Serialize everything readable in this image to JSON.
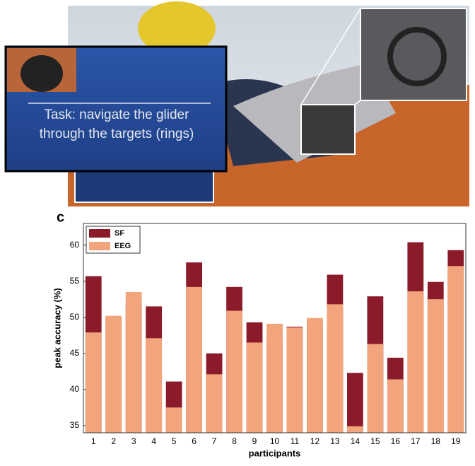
{
  "photo": {
    "caption_lines": [
      "Task: navigate the glider",
      "through the targets (rings)"
    ]
  },
  "panel_label": "c",
  "chart_data": {
    "type": "bar",
    "overlap": true,
    "x_label": "participants",
    "y_label": "peak accuracy (%)",
    "categories": [
      "1",
      "2",
      "3",
      "4",
      "5",
      "6",
      "7",
      "8",
      "9",
      "10",
      "11",
      "12",
      "13",
      "14",
      "15",
      "16",
      "17",
      "18",
      "19"
    ],
    "series": [
      {
        "name": "SF",
        "color": "#8b1a2b",
        "values": [
          55.7,
          49.9,
          51.9,
          51.5,
          41.1,
          57.6,
          45.0,
          54.2,
          49.3,
          47.1,
          48.7,
          48.8,
          55.9,
          42.3,
          52.9,
          44.4,
          60.4,
          54.9,
          59.3
        ]
      },
      {
        "name": "EEG",
        "color": "#f2a57c",
        "values": [
          47.9,
          50.2,
          53.5,
          47.1,
          37.5,
          54.2,
          42.1,
          50.9,
          46.5,
          49.1,
          48.6,
          49.9,
          51.8,
          34.9,
          46.3,
          41.4,
          53.6,
          52.5,
          57.1
        ]
      }
    ],
    "ylim": [
      34,
      63
    ],
    "yticks": [
      35,
      40,
      45,
      50,
      55,
      60
    ],
    "legend": "top-left"
  }
}
